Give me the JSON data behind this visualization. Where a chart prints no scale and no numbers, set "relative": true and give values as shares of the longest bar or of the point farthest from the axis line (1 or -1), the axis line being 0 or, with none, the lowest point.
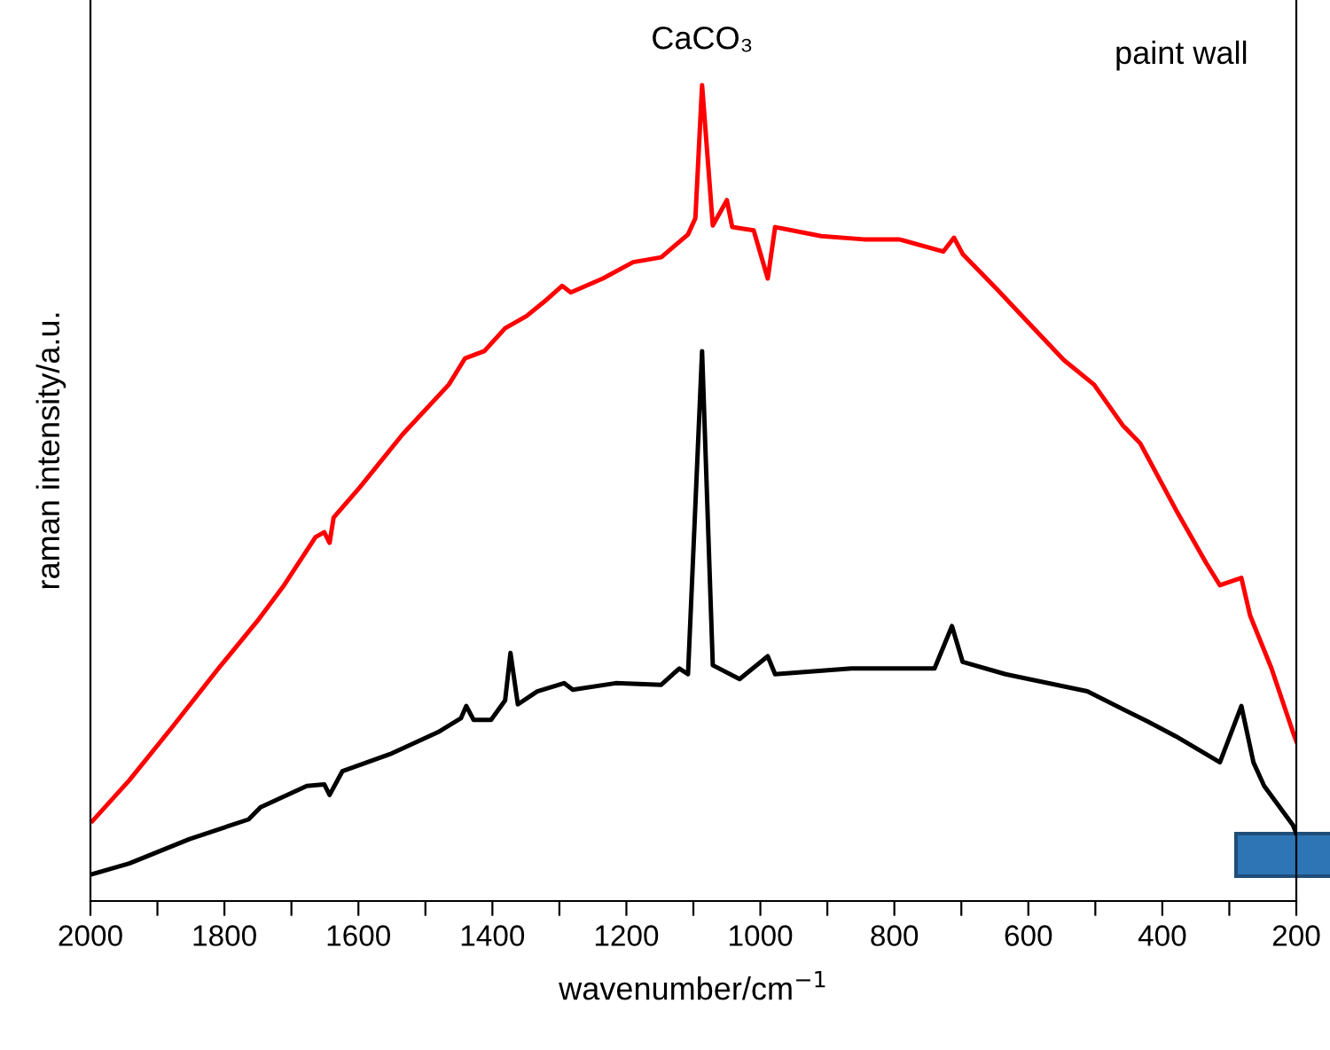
{
  "chart_data": {
    "type": "line",
    "relative": true,
    "xlabel": "wavenumber/cm$^{−1}$",
    "ylabel": "raman intensity/a.u.",
    "xlim": [
      2000,
      200
    ],
    "xticks": [
      2000,
      {
        "value": 1900,
        "label": null
      },
      1800,
      {
        "value": 1700,
        "label": null
      },
      1600,
      {
        "value": 1500,
        "label": null
      },
      1400,
      {
        "value": 1300,
        "label": null
      },
      1200,
      {
        "value": 1100,
        "label": null
      },
      1000,
      {
        "value": 900,
        "label": null
      },
      800,
      {
        "value": 700,
        "label": null
      },
      600,
      {
        "value": 500,
        "label": null
      },
      400,
      {
        "value": 300,
        "label": null
      },
      200
    ],
    "tick_labels": "x",
    "grid": false,
    "legend": false,
    "line_style": "solid",
    "marker": "none",
    "annotations": [
      {
        "text": "CaCO₃",
        "x": 1087,
        "y": 1
      },
      "paint wall"
    ],
    "series": [
      {
        "color": "#ff0000",
        "x": [
          1997,
          1942,
          1878,
          1809,
          1751,
          1711,
          1664,
          1651,
          1643,
          1637,
          1598,
          1534,
          1465,
          1441,
          1412,
          1381,
          1349,
          1322,
          1296,
          1283,
          1235,
          1190,
          1148,
          1108,
          1097,
          1087,
          1071,
          1050,
          1042,
          1010,
          989,
          978,
          909,
          846,
          793,
          727,
          711,
          698,
          647,
          600,
          547,
          502,
          459,
          433,
          380,
          335,
          314,
          282,
          269,
          237,
          205,
          200
        ],
        "values": [
          0.098,
          0.148,
          0.213,
          0.285,
          0.343,
          0.387,
          0.446,
          0.452,
          0.439,
          0.47,
          0.507,
          0.572,
          0.633,
          0.665,
          0.674,
          0.702,
          0.717,
          0.735,
          0.754,
          0.746,
          0.763,
          0.783,
          0.789,
          0.817,
          0.837,
          1,
          0.828,
          0.859,
          0.826,
          0.822,
          0.763,
          0.826,
          0.815,
          0.811,
          0.811,
          0.796,
          0.813,
          0.793,
          0.75,
          0.709,
          0.663,
          0.633,
          0.583,
          0.561,
          0.48,
          0.415,
          0.387,
          0.396,
          0.35,
          0.285,
          0.207,
          0.196
        ]
      },
      {
        "color": "#000000",
        "x": [
          1997,
          1942,
          1852,
          1764,
          1746,
          1677,
          1651,
          1643,
          1624,
          1553,
          1481,
          1447,
          1439,
          1428,
          1402,
          1381,
          1373,
          1362,
          1333,
          1293,
          1280,
          1216,
          1148,
          1121,
          1108,
          1087,
          1071,
          1031,
          989,
          978,
          864,
          740,
          714,
          698,
          634,
          512,
          422,
          380,
          314,
          282,
          264,
          248,
          205,
          200
        ],
        "values": [
          0.033,
          0.046,
          0.076,
          0.1,
          0.115,
          0.141,
          0.143,
          0.13,
          0.159,
          0.18,
          0.207,
          0.224,
          0.239,
          0.222,
          0.222,
          0.246,
          0.304,
          0.241,
          0.257,
          0.267,
          0.259,
          0.267,
          0.265,
          0.285,
          0.278,
          0.674,
          0.289,
          0.272,
          0.3,
          0.278,
          0.285,
          0.285,
          0.337,
          0.293,
          0.278,
          0.257,
          0.22,
          0.202,
          0.17,
          0.239,
          0.17,
          0.141,
          0.093,
          0.083
        ]
      }
    ]
  }
}
